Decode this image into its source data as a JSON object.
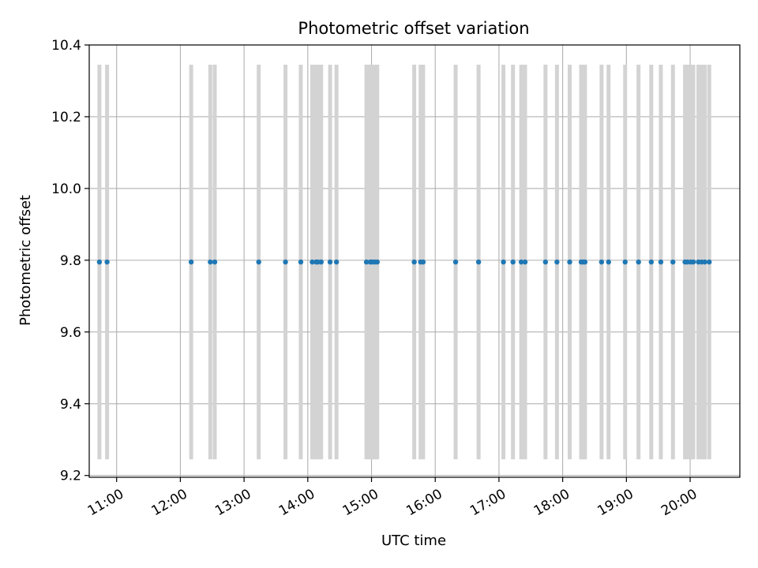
{
  "chart_data": {
    "type": "scatter",
    "title": "Photometric offset variation",
    "xlabel": "UTC time",
    "ylabel": "Photometric offset",
    "x_unit": "hours UTC",
    "xlim": [
      10.57,
      20.78
    ],
    "ylim": [
      9.195,
      10.4
    ],
    "y_ticks": [
      9.2,
      9.4,
      9.6,
      9.8,
      10.0,
      10.2,
      10.4
    ],
    "y_tick_labels": [
      "9.2",
      "9.4",
      "9.6",
      "9.8",
      "10.0",
      "10.2",
      "10.4"
    ],
    "x_ticks": [
      11,
      12,
      13,
      14,
      15,
      16,
      17,
      18,
      19,
      20
    ],
    "x_tick_labels": [
      "11:00",
      "12:00",
      "13:00",
      "14:00",
      "15:00",
      "16:00",
      "17:00",
      "18:00",
      "19:00",
      "20:00"
    ],
    "grid": true,
    "point_color": "#1f77b4",
    "error_bar_color": "#d3d3d3",
    "error_range": [
      9.245,
      10.345
    ],
    "x": [
      10.73,
      10.85,
      12.17,
      12.47,
      12.54,
      13.23,
      13.65,
      13.89,
      14.07,
      14.13,
      14.16,
      14.21,
      14.35,
      14.45,
      14.92,
      14.98,
      15.01,
      15.05,
      15.09,
      15.67,
      15.77,
      15.81,
      16.32,
      16.68,
      17.07,
      17.22,
      17.35,
      17.41,
      17.73,
      17.91,
      18.11,
      18.29,
      18.32,
      18.35,
      18.61,
      18.72,
      18.98,
      19.19,
      19.39,
      19.54,
      19.73,
      19.92,
      19.96,
      20.01,
      20.05,
      20.13,
      20.18,
      20.23,
      20.3
    ],
    "y": [
      9.795,
      9.795,
      9.795,
      9.795,
      9.795,
      9.795,
      9.795,
      9.795,
      9.795,
      9.795,
      9.795,
      9.795,
      9.795,
      9.795,
      9.795,
      9.795,
      9.795,
      9.795,
      9.795,
      9.795,
      9.795,
      9.795,
      9.795,
      9.795,
      9.795,
      9.795,
      9.795,
      9.795,
      9.795,
      9.795,
      9.795,
      9.795,
      9.795,
      9.795,
      9.795,
      9.795,
      9.795,
      9.795,
      9.795,
      9.795,
      9.795,
      9.795,
      9.795,
      9.795,
      9.795,
      9.795,
      9.795,
      9.795,
      9.795
    ]
  }
}
